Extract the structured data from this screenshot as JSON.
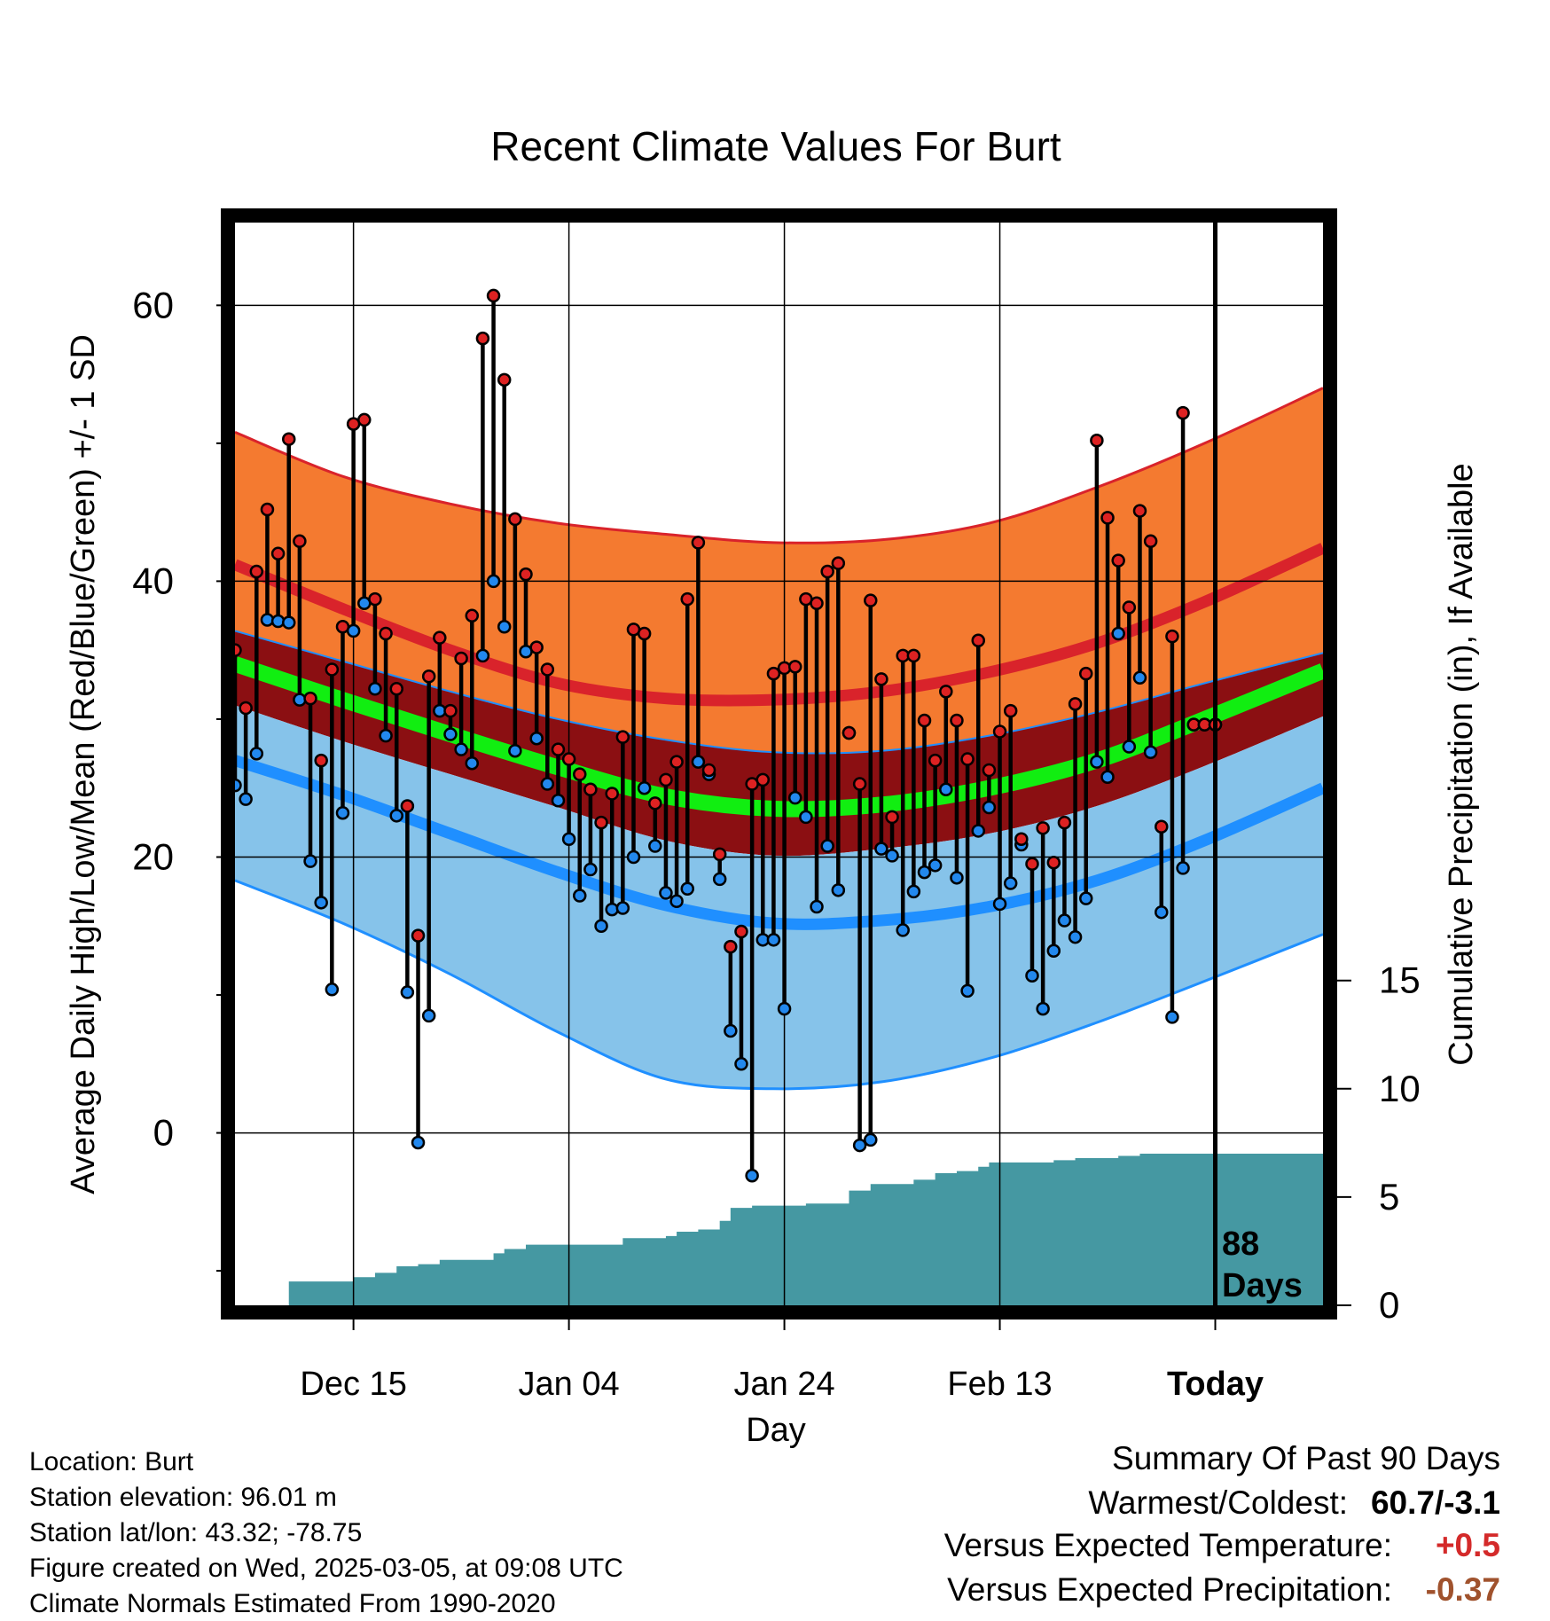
{
  "chart_data": {
    "type": "line",
    "title": "Recent Climate Values For Burt",
    "xlabel": "Day",
    "ylabel": "Average Daily High/Low/Mean (Red/Blue/Green) +/- 1 SD",
    "y2label": "Cumulative Precipitation (in), If Available",
    "ylim": [
      -12.5,
      66
    ],
    "y2lim": [
      0,
      50
    ],
    "yticks": [
      "60",
      "40",
      "20",
      "0"
    ],
    "yticks_values": [
      60,
      40,
      20,
      0
    ],
    "yminor_values": [
      50,
      30,
      10,
      -10
    ],
    "y2ticks": [
      "15",
      "10",
      "5",
      "0"
    ],
    "y2ticks_values": [
      15,
      10,
      5,
      0
    ],
    "xticks": [
      "Dec 15",
      "Jan 04",
      "Jan 24",
      "Feb 13",
      "Today"
    ],
    "xticks_day": [
      11,
      31,
      51,
      71,
      91
    ],
    "x_range": [
      0,
      101
    ],
    "today_label": "88",
    "today_label2": "Days",
    "normals": {
      "x": [
        0,
        10,
        20,
        30,
        40,
        50,
        60,
        70,
        80,
        90,
        101
      ],
      "high_plus_sd": [
        50.8,
        47.6,
        45.6,
        44.2,
        43.4,
        42.8,
        43.0,
        44.2,
        46.8,
        50.0,
        54.0
      ],
      "high_mean": [
        41.2,
        38.0,
        35.0,
        32.6,
        31.5,
        31.4,
        32.0,
        33.4,
        35.5,
        38.5,
        42.4
      ],
      "high_minus_sd": [
        36.4,
        34.2,
        32.0,
        30.0,
        28.5,
        27.6,
        27.7,
        28.8,
        30.5,
        32.6,
        34.8
      ],
      "mean_mean": [
        34.0,
        31.4,
        28.9,
        26.5,
        24.4,
        23.5,
        23.8,
        25.0,
        27.0,
        30.0,
        33.5
      ],
      "low_plus_sd": [
        31.0,
        28.4,
        26.0,
        23.6,
        21.2,
        20.1,
        20.6,
        21.7,
        23.7,
        26.6,
        30.2
      ],
      "low_mean": [
        27.0,
        24.5,
        21.7,
        18.9,
        16.5,
        15.2,
        15.4,
        16.4,
        18.3,
        21.2,
        25.0
      ],
      "low_minus_sd": [
        18.3,
        15.2,
        11.5,
        7.3,
        3.9,
        3.2,
        3.7,
        5.4,
        8.0,
        11.0,
        14.4
      ]
    },
    "series": [
      {
        "name": "Daily High",
        "color": "#dd2222",
        "x": [
          0,
          1,
          2,
          3,
          4,
          5,
          6,
          7,
          8,
          9,
          10,
          11,
          12,
          13,
          14,
          15,
          16,
          17,
          18,
          19,
          20,
          21,
          22,
          23,
          24,
          25,
          26,
          27,
          28,
          29,
          30,
          31,
          32,
          33,
          34,
          35,
          36,
          37,
          38,
          39,
          40,
          41,
          42,
          43,
          44,
          45,
          46,
          47,
          48,
          49,
          50,
          51,
          52,
          53,
          54,
          55,
          56,
          57,
          58,
          59,
          60,
          61,
          62,
          63,
          64,
          65,
          66,
          67,
          68,
          69,
          70,
          71,
          72,
          73,
          74,
          75,
          76,
          77,
          78,
          79,
          80,
          81,
          82,
          83,
          84,
          85,
          86,
          87,
          88,
          89,
          90,
          91
        ],
        "values": [
          35.0,
          30.8,
          40.7,
          45.2,
          42.0,
          50.3,
          42.9,
          31.5,
          27.0,
          33.6,
          36.7,
          51.4,
          51.7,
          38.7,
          36.2,
          32.2,
          23.7,
          14.3,
          33.1,
          35.9,
          30.6,
          34.4,
          37.5,
          57.6,
          60.7,
          54.6,
          44.5,
          40.5,
          35.2,
          33.6,
          27.8,
          27.1,
          26.0,
          24.9,
          22.5,
          24.6,
          28.7,
          36.5,
          36.2,
          23.9,
          25.6,
          26.9,
          38.7,
          42.8,
          26.3,
          20.2,
          13.5,
          14.6,
          25.3,
          25.6,
          33.3,
          33.7,
          33.8,
          38.7,
          38.4,
          40.7,
          41.3,
          29.0,
          25.3,
          38.6,
          32.9,
          22.9,
          34.6,
          34.6,
          29.9,
          27.0,
          32.0,
          29.9,
          27.1,
          35.7,
          26.3,
          29.1,
          30.6,
          21.3,
          19.5,
          22.1,
          19.6,
          22.5,
          31.1,
          33.3,
          50.2,
          44.6,
          41.5,
          38.1,
          45.1,
          42.9,
          22.2,
          36.0,
          52.2,
          29.6,
          29.6,
          29.6
        ]
      },
      {
        "name": "Daily Low",
        "color": "#2288ee",
        "x": [
          0,
          1,
          2,
          3,
          4,
          5,
          6,
          7,
          8,
          9,
          10,
          11,
          12,
          13,
          14,
          15,
          16,
          17,
          18,
          19,
          20,
          21,
          22,
          23,
          24,
          25,
          26,
          27,
          28,
          29,
          30,
          31,
          32,
          33,
          34,
          35,
          36,
          37,
          38,
          39,
          40,
          41,
          42,
          43,
          44,
          45,
          46,
          47,
          48,
          49,
          50,
          51,
          52,
          53,
          54,
          55,
          56,
          57,
          58,
          59,
          60,
          61,
          62,
          63,
          64,
          65,
          66,
          67,
          68,
          69,
          70,
          71,
          72,
          73,
          74,
          75,
          76,
          77,
          78,
          79,
          80,
          81,
          82,
          83,
          84,
          85,
          86,
          87,
          88,
          89,
          90,
          91
        ],
        "values": [
          25.2,
          24.2,
          27.5,
          37.2,
          37.1,
          37.0,
          31.4,
          19.7,
          16.7,
          10.4,
          23.2,
          36.4,
          38.4,
          32.2,
          28.8,
          23.0,
          10.2,
          -0.7,
          8.5,
          30.6,
          28.9,
          27.8,
          26.8,
          34.6,
          40.0,
          36.7,
          27.7,
          34.9,
          28.6,
          25.3,
          24.1,
          21.3,
          17.2,
          19.1,
          15.0,
          16.2,
          16.3,
          20.0,
          25.0,
          20.8,
          17.4,
          16.8,
          17.7,
          26.9,
          26.0,
          18.4,
          7.4,
          5.0,
          -3.1,
          14.0,
          14.0,
          9.0,
          24.3,
          22.9,
          16.4,
          20.8,
          17.6,
          29.0,
          -0.9,
          -0.5,
          20.6,
          20.1,
          14.7,
          17.5,
          18.9,
          19.4,
          24.9,
          18.5,
          10.3,
          21.9,
          23.6,
          16.6,
          18.1,
          20.9,
          11.4,
          9.0,
          13.2,
          15.4,
          14.2,
          17.0,
          26.9,
          25.8,
          36.2,
          28.0,
          33.0,
          27.6,
          16.0,
          8.4,
          19.2,
          29.6,
          29.6,
          29.6
        ]
      }
    ],
    "precip": {
      "x": [
        3,
        5,
        10,
        11,
        13,
        15,
        17,
        19,
        23,
        24,
        25,
        27,
        30,
        36,
        40,
        41,
        43,
        45,
        46,
        48,
        53,
        57,
        59,
        63,
        65,
        67,
        69,
        70,
        72,
        76,
        78,
        80,
        82,
        84,
        86,
        88,
        90,
        101
      ],
      "cumulative": [
        0.0,
        1.1,
        1.1,
        1.3,
        1.5,
        1.8,
        1.9,
        2.1,
        2.1,
        2.4,
        2.6,
        2.8,
        2.8,
        3.1,
        3.2,
        3.4,
        3.5,
        3.9,
        4.5,
        4.6,
        4.7,
        5.3,
        5.6,
        5.8,
        6.1,
        6.2,
        6.4,
        6.6,
        6.6,
        6.7,
        6.8,
        6.8,
        6.9,
        7.0,
        7.0,
        7.0,
        7.0,
        7.0
      ]
    },
    "summary": {
      "title": "Summary Of Past 90 Days",
      "warmest_coldest_label": "Warmest/Coldest:",
      "warmest_coldest_value": "60.7/-3.1",
      "temp_label": "Versus Expected Temperature:",
      "temp_value": "+0.5",
      "precip_label": "Versus Expected Precipitation:",
      "precip_value": "-0.37"
    }
  },
  "info": {
    "location": "Location: Burt",
    "elevation": "Station elevation: 96.01 m",
    "latlon": "Station lat/lon: 43.32; -78.75",
    "created": "Figure created on Wed, 2025-03-05, at 09:08 UTC",
    "normals": "Climate Normals Estimated From 1990-2020"
  },
  "colors": {
    "orange_band": "#f47a30",
    "high_line": "#d9232b",
    "darkred_band": "#8b0f12",
    "mean_line": "#11ee11",
    "blue_band": "#86c3ea",
    "low_line": "#1f8fff",
    "precip": "#4598a2",
    "temp_anomaly": "#d42a2a",
    "precip_anomaly": "#a0522d"
  }
}
